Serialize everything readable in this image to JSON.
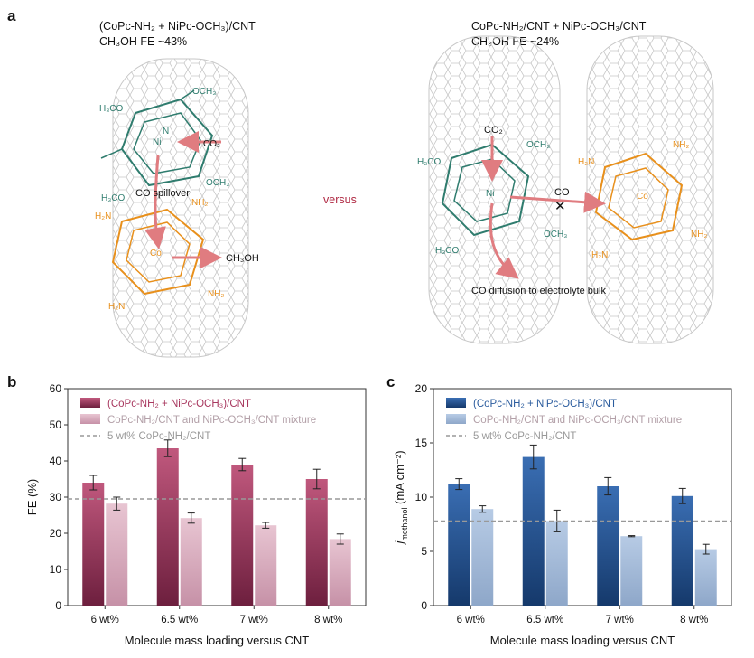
{
  "panel_a": {
    "label": "a",
    "left": {
      "title_line1": "(CoPc-NH₂ + NiPc-OCH₃)/CNT",
      "title_line2": "CH₃OH FE ~43%",
      "co2_label": "CO₂",
      "spillover_label": "CO spillover",
      "product_label": "CH₃OH",
      "ni_label": "Ni",
      "co_label": "Co",
      "n_label": "N",
      "och3_label": "OCH₃",
      "h3co_label": "H₃CO",
      "nh2_label": "NH₂",
      "h2n_label": "H₂N"
    },
    "versus_label": "versus",
    "right": {
      "title_line1": "CoPc-NH₂/CNT + NiPc-OCH₃/CNT",
      "title_line2": "CH₃OH FE ~24%",
      "co2_label": "CO₂",
      "co_label": "CO",
      "blocked_mark": "✕",
      "diffusion_label": "CO diffusion to electrolyte bulk",
      "ni_label": "Ni",
      "co_metal_label": "Co",
      "och3_label": "OCH₃",
      "h3co_label": "H₃CO",
      "nh2_label": "NH₂",
      "h2n_label": "H₂N"
    }
  },
  "chart_data": [
    {
      "panel": "b",
      "type": "bar",
      "categories": [
        "6 wt%",
        "6.5 wt%",
        "7 wt%",
        "8 wt%"
      ],
      "series": [
        {
          "name": "(CoPc-NH₂ + NiPc-OCH₃)/CNT",
          "values": [
            34,
            43.5,
            39,
            35
          ],
          "errors": [
            2,
            2.3,
            1.7,
            2.7
          ],
          "color": "#a8385f"
        },
        {
          "name": "CoPc-NH₂/CNT and NiPc-OCH₃/CNT mixture",
          "values": [
            28.2,
            24.2,
            22.2,
            18.4
          ],
          "errors": [
            1.8,
            1.4,
            0.8,
            1.4
          ],
          "color": "#e2b9c8"
        }
      ],
      "reference_line": {
        "name": "5 wt% CoPc-NH₂/CNT",
        "value": 29.5,
        "color": "#999999"
      },
      "xlabel": "Molecule mass loading versus CNT",
      "ylabel": "FE (%)",
      "ylim": [
        0,
        60
      ],
      "yticks": [
        0,
        10,
        20,
        30,
        40,
        50,
        60
      ],
      "legend_position": "top-left"
    },
    {
      "panel": "c",
      "type": "bar",
      "categories": [
        "6 wt%",
        "6.5 wt%",
        "7 wt%",
        "8 wt%"
      ],
      "series": [
        {
          "name": "(CoPc-NH₂ + NiPc-OCH₃)/CNT",
          "values": [
            11.2,
            13.7,
            11,
            10.1
          ],
          "errors": [
            0.5,
            1.1,
            0.8,
            0.7
          ],
          "color": "#2b5c9e"
        },
        {
          "name": "CoPc-NH₂/CNT and NiPc-OCH₃/CNT mixture",
          "values": [
            8.9,
            7.8,
            6.4,
            5.2
          ],
          "errors": [
            0.3,
            1.0,
            0.05,
            0.45
          ],
          "color": "#a9bfdc"
        }
      ],
      "reference_line": {
        "name": "5 wt% CoPc-NH₂/CNT",
        "value": 7.8,
        "color": "#999999"
      },
      "xlabel": "Molecule mass loading versus CNT",
      "ylabel_main": "j",
      "ylabel_sub": "methanol",
      "ylabel_unit": " (mA cm⁻²)",
      "ylim": [
        0,
        20
      ],
      "yticks": [
        0,
        5,
        10,
        15,
        20
      ],
      "legend_position": "top-left"
    }
  ],
  "panel_b_label": "b",
  "panel_c_label": "c"
}
